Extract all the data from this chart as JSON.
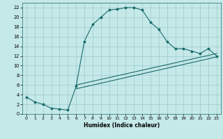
{
  "xlabel": "Humidex (Indice chaleur)",
  "xlim": [
    -0.5,
    23.5
  ],
  "ylim": [
    0,
    23
  ],
  "yticks": [
    0,
    2,
    4,
    6,
    8,
    10,
    12,
    14,
    16,
    18,
    20,
    22
  ],
  "xticks": [
    0,
    1,
    2,
    3,
    4,
    5,
    6,
    7,
    8,
    9,
    10,
    11,
    12,
    13,
    14,
    15,
    16,
    17,
    18,
    19,
    20,
    21,
    22,
    23
  ],
  "bg_color": "#c5e8e8",
  "grid_color": "#9dcaca",
  "line_color": "#1a6b6b",
  "line1_x": [
    0,
    1,
    2,
    3,
    4,
    5,
    6,
    7,
    8,
    9,
    10,
    11,
    12,
    13,
    14,
    15,
    16,
    17,
    18,
    19,
    20,
    21,
    22,
    23
  ],
  "line1_y": [
    3.5,
    2.5,
    2.0,
    1.2,
    1.0,
    0.8,
    5.7,
    15.0,
    18.5,
    20.0,
    21.5,
    21.7,
    22.0,
    22.0,
    21.5,
    19.0,
    17.5,
    15.0,
    13.5,
    13.5,
    13.0,
    12.5,
    13.5,
    12.0
  ],
  "line2_x": [
    6,
    23
  ],
  "line2_y": [
    6.0,
    12.5
  ],
  "line3_x": [
    6,
    23
  ],
  "line3_y": [
    5.2,
    11.8
  ]
}
